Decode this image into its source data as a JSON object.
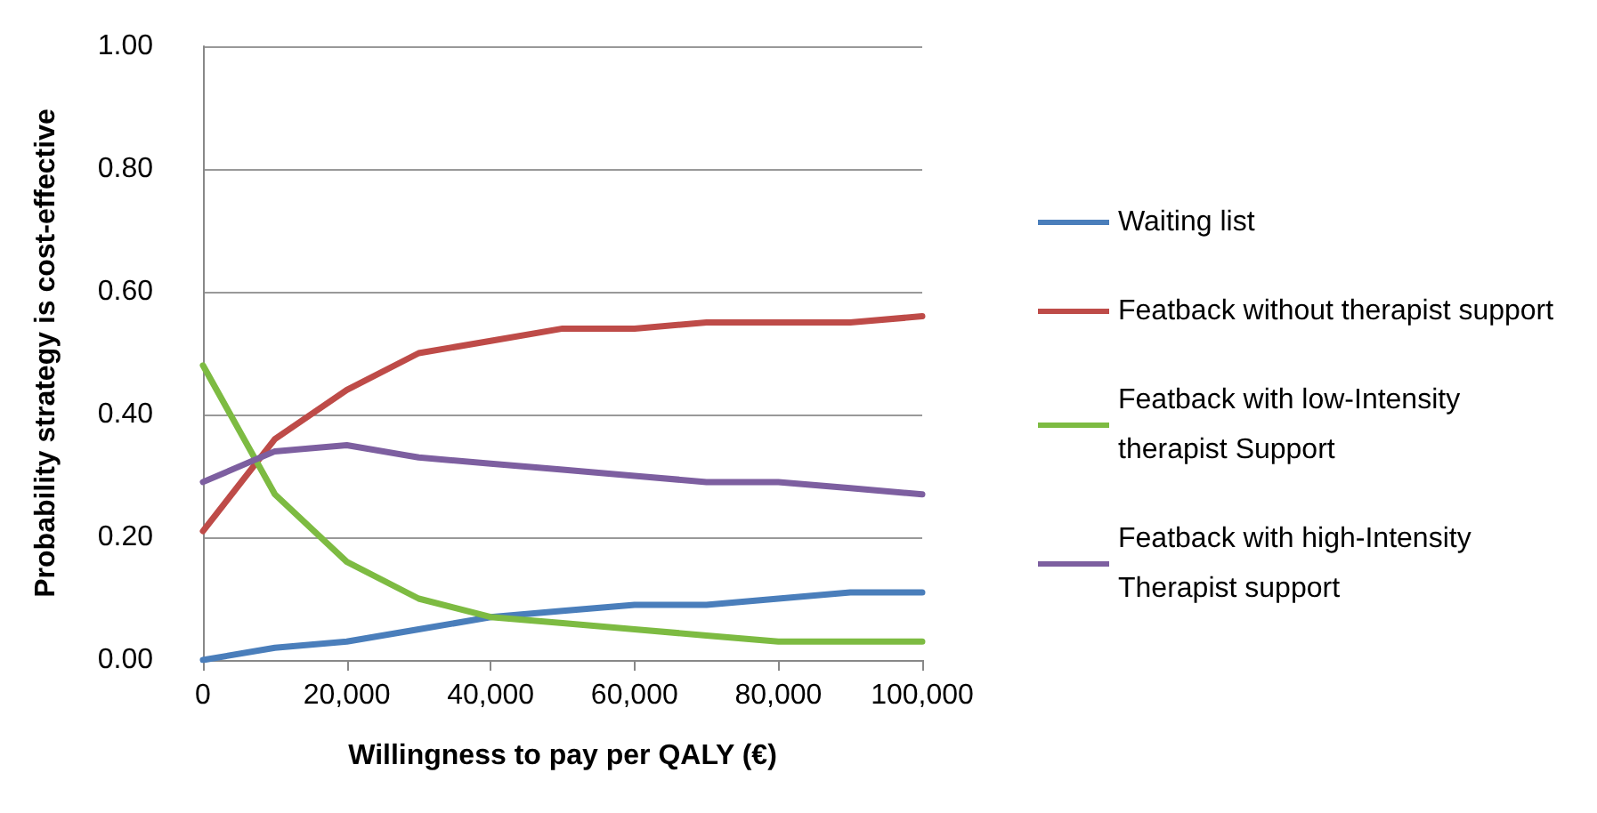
{
  "chart_data": {
    "type": "line",
    "xlabel": "Willingness to pay per QALY (€)",
    "ylabel": "Probability strategy is cost-effective",
    "x": [
      0,
      10000,
      20000,
      30000,
      40000,
      50000,
      60000,
      70000,
      80000,
      90000,
      100000
    ],
    "series": [
      {
        "name": "Waiting list",
        "color": "#4a7ebb",
        "values": [
          0.0,
          0.02,
          0.03,
          0.05,
          0.07,
          0.08,
          0.09,
          0.09,
          0.1,
          0.11,
          0.11
        ]
      },
      {
        "name": "Featback without therapist support",
        "color": "#be4b48",
        "values": [
          0.21,
          0.36,
          0.44,
          0.5,
          0.52,
          0.54,
          0.54,
          0.55,
          0.55,
          0.55,
          0.56
        ]
      },
      {
        "name": "Featback with low-Intensity therapist Support",
        "color": "#7dbb42",
        "values": [
          0.48,
          0.27,
          0.16,
          0.1,
          0.07,
          0.06,
          0.05,
          0.04,
          0.03,
          0.03,
          0.03
        ]
      },
      {
        "name": "Featback with high-Intensity Therapist support",
        "color": "#7d5fa0",
        "values": [
          0.29,
          0.34,
          0.35,
          0.33,
          0.32,
          0.31,
          0.3,
          0.29,
          0.29,
          0.28,
          0.27
        ]
      }
    ],
    "xlim": [
      0,
      100000
    ],
    "xticks": [
      {
        "value": 0,
        "label": "0"
      },
      {
        "value": 20000,
        "label": "20,000"
      },
      {
        "value": 40000,
        "label": "40,000"
      },
      {
        "value": 60000,
        "label": "60,000"
      },
      {
        "value": 80000,
        "label": "80,000"
      },
      {
        "value": 100000,
        "label": "100,000"
      }
    ],
    "ylim": [
      0,
      1
    ],
    "yticks": [
      {
        "value": 0,
        "label": "0.00"
      },
      {
        "value": 0.2,
        "label": "0.20"
      },
      {
        "value": 0.4,
        "label": "0.40"
      },
      {
        "value": 0.6,
        "label": "0.60"
      },
      {
        "value": 0.8,
        "label": "0.80"
      },
      {
        "value": 1,
        "label": "1.00"
      }
    ],
    "grid": "y",
    "legend": "right",
    "marker": "none",
    "line_style": "solid"
  }
}
